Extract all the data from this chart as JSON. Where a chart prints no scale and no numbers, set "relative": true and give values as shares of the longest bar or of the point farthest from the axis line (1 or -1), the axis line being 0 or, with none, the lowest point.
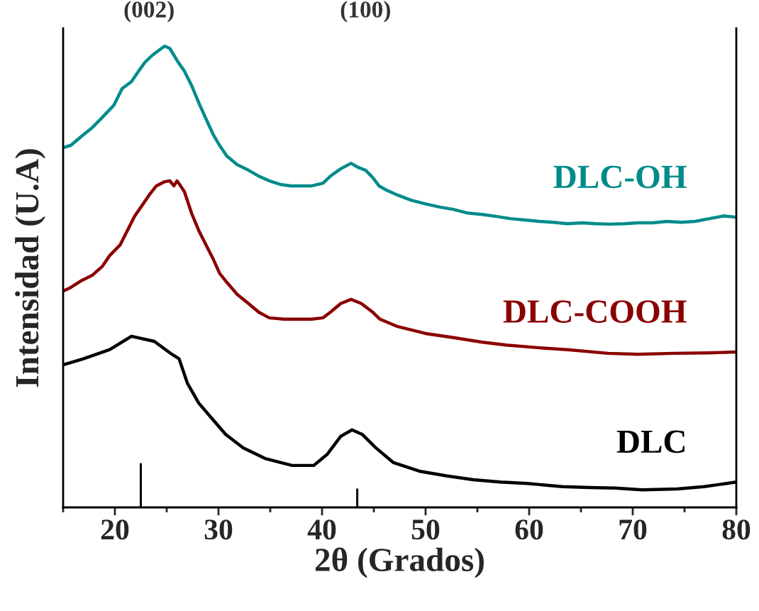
{
  "chart_data": {
    "type": "line",
    "relative": true,
    "xlabel": "2θ (Grados)",
    "ylabel": "Intensidad (U.A)",
    "xlim": [
      15,
      80
    ],
    "xticks": [
      {
        "value": 15,
        "label": null
      },
      20,
      {
        "value": 25,
        "label": null
      },
      30,
      {
        "value": 35,
        "label": null
      },
      40,
      {
        "value": 45,
        "label": null
      },
      50,
      {
        "value": 55,
        "label": null
      },
      60,
      {
        "value": 65,
        "label": null
      },
      70,
      {
        "value": 75,
        "label": null
      },
      80
    ],
    "tick_labels": "x",
    "grid": false,
    "legend": false,
    "marker": "none",
    "line_style": "solid",
    "annotations": [
      "(002)",
      "(100)"
    ],
    "series": [
      {
        "name": "DLC-OH",
        "color": "#008b8b",
        "x": [
          15.0,
          15.75,
          16.8,
          17.8,
          18.8,
          19.9,
          20.7,
          21.6,
          22.3,
          22.9,
          23.6,
          24.3,
          24.8,
          25.3,
          26.0,
          26.7,
          27.4,
          28.1,
          28.8,
          29.5,
          30.1,
          30.8,
          31.8,
          32.9,
          33.9,
          34.9,
          36.0,
          37.0,
          38.0,
          39.0,
          40.1,
          40.8,
          41.8,
          42.8,
          43.5,
          44.2,
          44.9,
          45.5,
          46.2,
          47.3,
          48.6,
          50.0,
          51.4,
          52.7,
          54.1,
          55.5,
          56.8,
          58.2,
          59.6,
          61.0,
          62.3,
          63.7,
          65.1,
          66.4,
          67.8,
          69.2,
          70.5,
          71.9,
          73.3,
          74.7,
          76.0,
          77.4,
          78.8,
          80.0
        ],
        "values": [
          0.78,
          0.785,
          0.805,
          0.823,
          0.846,
          0.872,
          0.908,
          0.923,
          0.946,
          0.965,
          0.98,
          0.992,
          1.0,
          0.995,
          0.969,
          0.946,
          0.915,
          0.877,
          0.842,
          0.808,
          0.785,
          0.762,
          0.743,
          0.731,
          0.718,
          0.708,
          0.7,
          0.697,
          0.697,
          0.697,
          0.703,
          0.718,
          0.734,
          0.746,
          0.737,
          0.731,
          0.715,
          0.697,
          0.688,
          0.677,
          0.666,
          0.658,
          0.651,
          0.646,
          0.638,
          0.635,
          0.631,
          0.626,
          0.623,
          0.62,
          0.618,
          0.615,
          0.617,
          0.615,
          0.614,
          0.615,
          0.617,
          0.617,
          0.62,
          0.618,
          0.62,
          0.626,
          0.632,
          0.629
        ]
      },
      {
        "name": "DLC-COOH",
        "color": "#8b0000",
        "x": [
          15.0,
          15.75,
          16.8,
          17.8,
          18.8,
          19.5,
          20.5,
          21.2,
          21.9,
          22.6,
          23.3,
          24.0,
          24.8,
          25.3,
          25.7,
          26.0,
          26.7,
          27.4,
          28.1,
          28.8,
          29.5,
          30.1,
          30.8,
          31.8,
          32.9,
          33.9,
          34.9,
          36.3,
          37.7,
          39.0,
          40.1,
          40.8,
          41.8,
          42.8,
          43.8,
          44.9,
          45.6,
          47.3,
          50.0,
          52.7,
          55.5,
          57.8,
          61.0,
          63.7,
          67.6,
          70.5,
          74.0,
          77.4,
          80.0
        ],
        "values": [
          0.469,
          0.477,
          0.492,
          0.503,
          0.523,
          0.546,
          0.569,
          0.6,
          0.631,
          0.654,
          0.677,
          0.697,
          0.706,
          0.708,
          0.697,
          0.708,
          0.685,
          0.638,
          0.6,
          0.569,
          0.538,
          0.508,
          0.488,
          0.462,
          0.442,
          0.423,
          0.411,
          0.408,
          0.408,
          0.408,
          0.411,
          0.423,
          0.442,
          0.451,
          0.442,
          0.423,
          0.408,
          0.392,
          0.377,
          0.368,
          0.358,
          0.352,
          0.346,
          0.342,
          0.334,
          0.332,
          0.334,
          0.335,
          0.337
        ]
      },
      {
        "name": "DLC",
        "color": "#000000",
        "x": [
          15.0,
          16.95,
          19.5,
          21.6,
          23.8,
          25.5,
          26.2,
          27.0,
          28.1,
          29.4,
          30.7,
          32.4,
          34.5,
          37.1,
          39.2,
          40.5,
          41.8,
          42.9,
          43.9,
          45.2,
          46.9,
          49.5,
          52.1,
          54.6,
          57.2,
          59.8,
          63.2,
          65.8,
          68.3,
          70.9,
          74.3,
          76.9,
          80.0
        ],
        "values": [
          0.309,
          0.322,
          0.342,
          0.371,
          0.36,
          0.332,
          0.322,
          0.269,
          0.226,
          0.192,
          0.158,
          0.129,
          0.106,
          0.091,
          0.091,
          0.115,
          0.154,
          0.168,
          0.158,
          0.129,
          0.097,
          0.078,
          0.068,
          0.06,
          0.055,
          0.052,
          0.045,
          0.043,
          0.042,
          0.038,
          0.04,
          0.045,
          0.055
        ]
      },
      {
        "type": "bar",
        "color": "#000000",
        "x": [
          22.5,
          43.4
        ],
        "values": [
          0.097,
          0.042
        ]
      }
    ]
  }
}
